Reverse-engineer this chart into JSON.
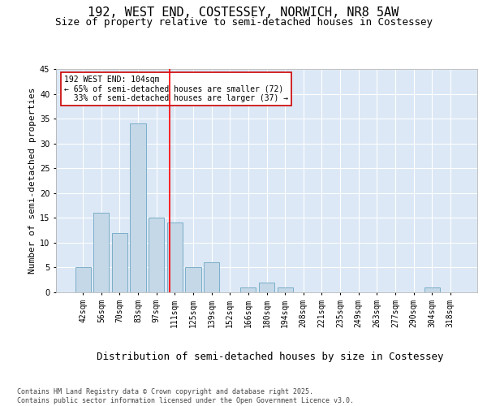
{
  "title_line1": "192, WEST END, COSTESSEY, NORWICH, NR8 5AW",
  "title_line2": "Size of property relative to semi-detached houses in Costessey",
  "xlabel": "Distribution of semi-detached houses by size in Costessey",
  "ylabel": "Number of semi-detached properties",
  "categories": [
    "42sqm",
    "56sqm",
    "70sqm",
    "83sqm",
    "97sqm",
    "111sqm",
    "125sqm",
    "139sqm",
    "152sqm",
    "166sqm",
    "180sqm",
    "194sqm",
    "208sqm",
    "221sqm",
    "235sqm",
    "249sqm",
    "263sqm",
    "277sqm",
    "290sqm",
    "304sqm",
    "318sqm"
  ],
  "values": [
    5,
    16,
    12,
    34,
    15,
    14,
    5,
    6,
    0,
    1,
    2,
    1,
    0,
    0,
    0,
    0,
    0,
    0,
    0,
    1,
    0
  ],
  "bar_color": "#c5d8e8",
  "bar_edge_color": "#7aaec8",
  "red_line_x": 4.72,
  "annotation_text": "192 WEST END: 104sqm\n← 65% of semi-detached houses are smaller (72)\n  33% of semi-detached houses are larger (37) →",
  "annotation_box_color": "#ffffff",
  "annotation_box_edge_color": "#cc0000",
  "ylim": [
    0,
    45
  ],
  "yticks": [
    0,
    5,
    10,
    15,
    20,
    25,
    30,
    35,
    40,
    45
  ],
  "background_color": "#dce8f5",
  "footer_text": "Contains HM Land Registry data © Crown copyright and database right 2025.\nContains public sector information licensed under the Open Government Licence v3.0.",
  "title_fontsize": 11,
  "subtitle_fontsize": 9,
  "tick_fontsize": 7,
  "xlabel_fontsize": 9,
  "ylabel_fontsize": 8,
  "annotation_fontsize": 7,
  "footer_fontsize": 6
}
